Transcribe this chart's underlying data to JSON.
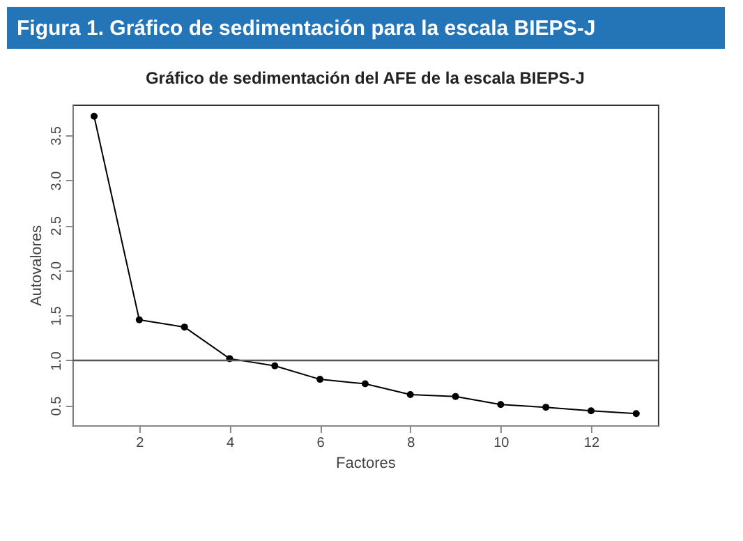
{
  "chart_data": {
    "type": "line",
    "title": "Figura 1. Gráfico de sedimentación para la escala BIEPS-J",
    "subtitle": "Gráfico de sedimentación del AFE de la escala BIEPS-J",
    "xlabel": "Factores",
    "ylabel": "Autovalores",
    "x": [
      1,
      2,
      3,
      4,
      5,
      6,
      7,
      8,
      9,
      10,
      11,
      12,
      13
    ],
    "series": [
      {
        "color": "#000000",
        "values": [
          3.71,
          1.45,
          1.37,
          1.02,
          0.94,
          0.79,
          0.74,
          0.62,
          0.6,
          0.51,
          0.48,
          0.44,
          0.41
        ]
      }
    ],
    "xlim": [
      0.52,
      13.48
    ],
    "xticks": [
      2,
      4,
      6,
      8,
      10,
      12
    ],
    "ylim": [
      0.28,
      3.84
    ],
    "yticks": [
      0.5,
      {
        "value": 1,
        "label": "1.0"
      },
      1.5,
      {
        "value": 2,
        "label": "2.0"
      },
      2.5,
      {
        "value": 3,
        "label": "3.0"
      },
      3.5
    ],
    "ref_lines": [
      {
        "axis": "y",
        "value": 1.0,
        "color": "#555555"
      }
    ],
    "grid": false,
    "marker": "circle",
    "line_style": "solid"
  }
}
